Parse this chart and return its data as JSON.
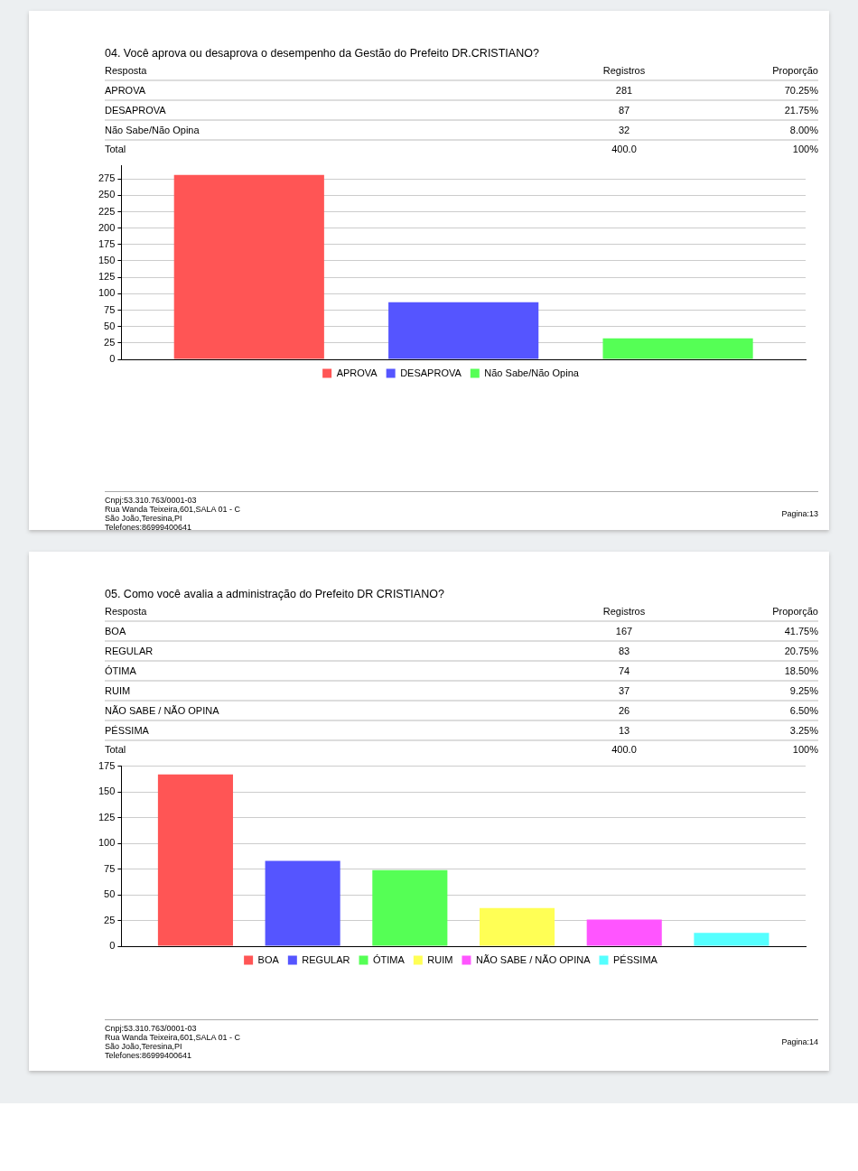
{
  "chart_data": [
    {
      "type": "bar",
      "title": "04. Você aprova ou desaprova o desempenho da Gestão do Prefeito DR.CRISTIANO?",
      "categories": [
        null
      ],
      "series": [
        {
          "name": "APROVA",
          "color": "#ff5555",
          "values": [
            281
          ]
        },
        {
          "name": "DESAPROVA",
          "color": "#5555ff",
          "values": [
            87
          ]
        },
        {
          "name": "Não Sabe/Não Opina",
          "color": "#55ff55",
          "values": [
            32
          ]
        }
      ],
      "ylim": [
        0,
        295
      ],
      "yticks": [
        0,
        25,
        50,
        75,
        100,
        125,
        150,
        175,
        200,
        225,
        250,
        275
      ],
      "grid": "y",
      "legend": "bottom",
      "tick_labels": "y",
      "annotations": [
        "Resposta",
        "Registros",
        "Proporção",
        "281",
        "70.25%",
        "87",
        "21.75%",
        "32",
        "8.00%",
        "Total",
        "400.0",
        "100%",
        "Cnpj:53.310.763/0001-03",
        "Rua Wanda Teixeira,601,SALA 01 - C",
        "São João,Teresina,PI",
        "Telefones:86999400641",
        "Pagina:13"
      ]
    },
    {
      "type": "bar",
      "title": "05. Como você avalia a administração do Prefeito DR CRISTIANO?",
      "categories": [
        null
      ],
      "series": [
        {
          "name": "BOA",
          "color": "#ff5555",
          "values": [
            167
          ]
        },
        {
          "name": "REGULAR",
          "color": "#5555ff",
          "values": [
            83
          ]
        },
        {
          "name": "ÓTIMA",
          "color": "#55ff55",
          "values": [
            74
          ]
        },
        {
          "name": "RUIM",
          "color": "#ffff55",
          "values": [
            37
          ]
        },
        {
          "name": "NÃO SABE / NÃO OPINA",
          "color": "#ff55ff",
          "values": [
            26
          ]
        },
        {
          "name": "PÉSSIMA",
          "color": "#55ffff",
          "values": [
            13
          ]
        }
      ],
      "ylim": [
        0,
        175
      ],
      "yticks": [
        0,
        25,
        50,
        75,
        100,
        125,
        150,
        175
      ],
      "grid": "y",
      "legend": "bottom",
      "tick_labels": "y",
      "annotations": [
        "Resposta",
        "Registros",
        "Proporção",
        "167",
        "41.75%",
        "83",
        "20.75%",
        "74",
        "18.50%",
        "37",
        "9.25%",
        "26",
        "6.50%",
        "13",
        "3.25%",
        "Total",
        "400.0",
        "100%",
        "Cnpj:53.310.763/0001-03",
        "Rua Wanda Teixeira,601,SALA 01 - C",
        "São João,Teresina,PI",
        "Telefones:86999400641",
        "Pagina:14"
      ]
    }
  ]
}
